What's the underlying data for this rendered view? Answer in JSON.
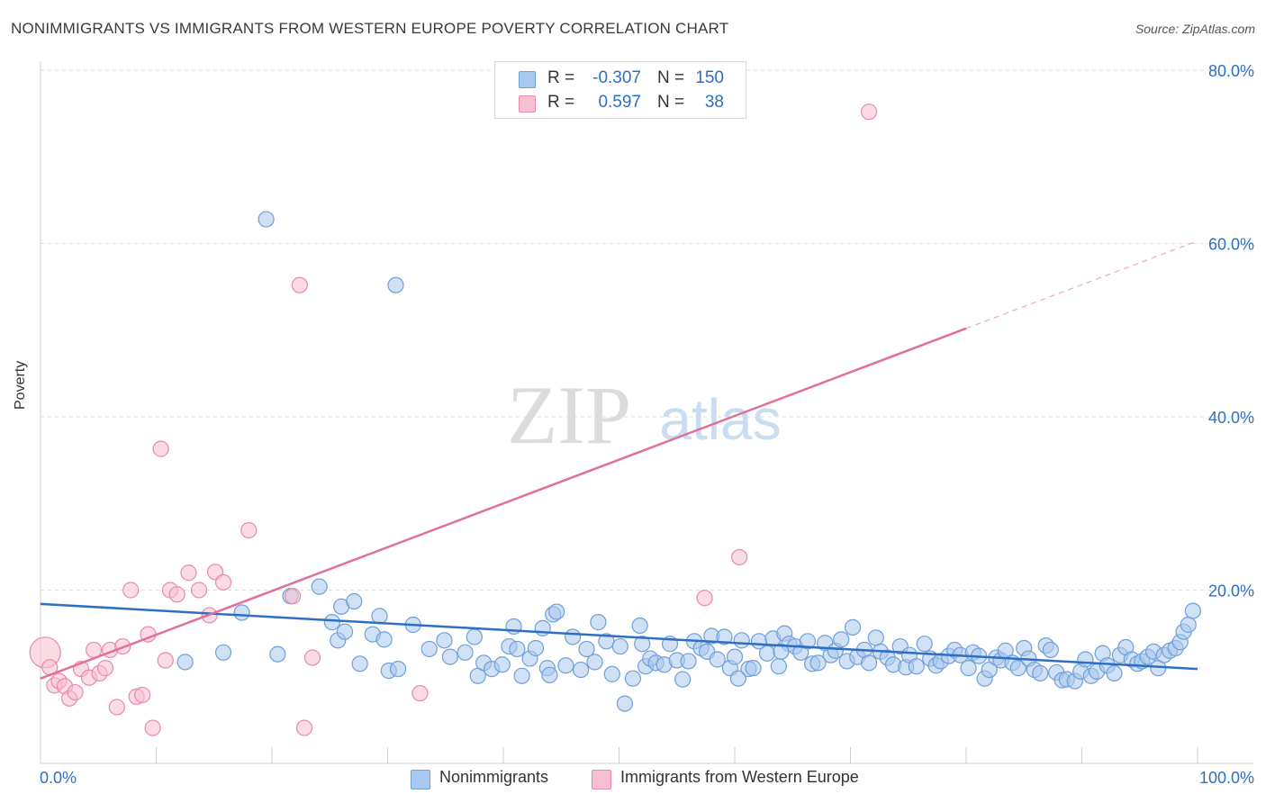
{
  "title": "NONIMMIGRANTS VS IMMIGRANTS FROM WESTERN EUROPE POVERTY CORRELATION CHART",
  "source": "Source: ZipAtlas.com",
  "watermark": {
    "zip": "ZIP",
    "atlas": "atlas"
  },
  "colors": {
    "blue_fill": "#a9c8ee",
    "blue_stroke": "#6f9fd8",
    "blue_line": "#2e6fc4",
    "pink_fill": "#f7bfd0",
    "pink_stroke": "#e88aa8",
    "pink_line": "#e0709a",
    "value_text": "#2e6fc4"
  },
  "stats": [
    {
      "r_label": "R =",
      "r_value": "-0.307",
      "n_label": "N =",
      "n_value": "150",
      "swatch": "#a9c8ee"
    },
    {
      "r_label": "R =",
      "r_value": "0.597",
      "n_label": "N =",
      "n_value": "38",
      "swatch": "#f7bfd0"
    }
  ],
  "legend": [
    {
      "label": "Nonimmigrants",
      "swatch": "#a9c8ee"
    },
    {
      "label": "Immigrants from Western Europe",
      "swatch": "#f7bfd0"
    }
  ],
  "chart_data": {
    "type": "scatter",
    "title": "NONIMMIGRANTS VS IMMIGRANTS FROM WESTERN EUROPE POVERTY CORRELATION CHART",
    "xlabel": "",
    "ylabel": "Poverty",
    "xlim": [
      0,
      100
    ],
    "ylim": [
      0,
      80
    ],
    "x_tick_labels": [
      "0.0%",
      "100.0%"
    ],
    "y_ticks": [
      20,
      40,
      60,
      80
    ],
    "y_tick_labels": [
      "20.0%",
      "40.0%",
      "60.0%",
      "80.0%"
    ],
    "grid": true,
    "series": [
      {
        "name": "Nonimmigrants",
        "r": -0.307,
        "n": 150,
        "trend": {
          "x0": 0,
          "y0": 18.4,
          "x1": 100,
          "y1": 10.9
        },
        "points": [
          [
            12.5,
            11.7
          ],
          [
            19.5,
            62.8
          ],
          [
            21.6,
            19.3
          ],
          [
            24.1,
            20.4
          ],
          [
            25.2,
            16.3
          ],
          [
            25.7,
            14.2
          ],
          [
            26.0,
            18.1
          ],
          [
            26.3,
            15.2
          ],
          [
            27.1,
            18.7
          ],
          [
            27.6,
            11.5
          ],
          [
            28.7,
            14.9
          ],
          [
            29.3,
            17.0
          ],
          [
            29.7,
            14.3
          ],
          [
            30.1,
            10.7
          ],
          [
            30.9,
            10.9
          ],
          [
            32.2,
            16.0
          ],
          [
            34.9,
            14.2
          ],
          [
            36.7,
            12.8
          ],
          [
            37.5,
            14.6
          ],
          [
            37.8,
            10.1
          ],
          [
            38.3,
            11.6
          ],
          [
            39.0,
            10.9
          ],
          [
            39.9,
            11.4
          ],
          [
            40.5,
            13.5
          ],
          [
            40.9,
            15.8
          ],
          [
            41.2,
            13.2
          ],
          [
            41.6,
            10.1
          ],
          [
            42.3,
            12.1
          ],
          [
            42.8,
            13.3
          ],
          [
            43.4,
            15.6
          ],
          [
            43.8,
            11.0
          ],
          [
            44.3,
            17.2
          ],
          [
            44.6,
            17.5
          ],
          [
            45.4,
            11.3
          ],
          [
            46.0,
            14.6
          ],
          [
            46.7,
            10.8
          ],
          [
            47.2,
            13.2
          ],
          [
            47.9,
            11.7
          ],
          [
            48.2,
            16.3
          ],
          [
            48.9,
            14.1
          ],
          [
            49.4,
            10.3
          ],
          [
            50.1,
            13.5
          ],
          [
            50.5,
            6.9
          ],
          [
            51.2,
            9.8
          ],
          [
            51.8,
            15.9
          ],
          [
            52.3,
            11.2
          ],
          [
            52.7,
            12.1
          ],
          [
            53.2,
            11.6
          ],
          [
            53.9,
            11.4
          ],
          [
            54.4,
            13.8
          ],
          [
            55.0,
            11.9
          ],
          [
            55.5,
            9.7
          ],
          [
            56.0,
            11.8
          ],
          [
            56.5,
            14.1
          ],
          [
            57.1,
            13.3
          ],
          [
            57.6,
            12.9
          ],
          [
            58.0,
            14.7
          ],
          [
            58.5,
            12.0
          ],
          [
            59.1,
            14.6
          ],
          [
            59.6,
            11.0
          ],
          [
            60.0,
            12.3
          ],
          [
            60.6,
            14.2
          ],
          [
            61.2,
            10.9
          ],
          [
            61.6,
            11.0
          ],
          [
            62.1,
            14.1
          ],
          [
            62.8,
            12.7
          ],
          [
            63.3,
            14.4
          ],
          [
            63.8,
            11.2
          ],
          [
            64.3,
            15.0
          ],
          [
            64.7,
            13.8
          ],
          [
            65.2,
            13.5
          ],
          [
            65.7,
            12.8
          ],
          [
            66.3,
            14.1
          ],
          [
            66.7,
            11.5
          ],
          [
            67.2,
            11.6
          ],
          [
            67.8,
            13.9
          ],
          [
            68.3,
            12.5
          ],
          [
            68.7,
            13.0
          ],
          [
            69.2,
            14.3
          ],
          [
            69.7,
            11.8
          ],
          [
            70.2,
            15.7
          ],
          [
            70.6,
            12.3
          ],
          [
            71.2,
            13.1
          ],
          [
            71.6,
            11.6
          ],
          [
            72.2,
            14.5
          ],
          [
            72.6,
            12.9
          ],
          [
            73.2,
            12.2
          ],
          [
            73.7,
            11.4
          ],
          [
            74.3,
            13.5
          ],
          [
            74.8,
            11.1
          ],
          [
            75.1,
            12.5
          ],
          [
            75.7,
            11.2
          ],
          [
            76.4,
            13.8
          ],
          [
            76.9,
            12.1
          ],
          [
            77.4,
            11.3
          ],
          [
            77.8,
            11.8
          ],
          [
            78.5,
            12.4
          ],
          [
            79.0,
            13.1
          ],
          [
            79.5,
            12.5
          ],
          [
            80.2,
            11.0
          ],
          [
            80.6,
            12.8
          ],
          [
            81.1,
            12.4
          ],
          [
            81.6,
            9.8
          ],
          [
            82.0,
            10.8
          ],
          [
            82.6,
            12.2
          ],
          [
            83.0,
            11.9
          ],
          [
            83.4,
            13.0
          ],
          [
            84.0,
            11.6
          ],
          [
            84.5,
            11.0
          ],
          [
            85.0,
            13.3
          ],
          [
            85.4,
            12.1
          ],
          [
            85.9,
            10.8
          ],
          [
            86.4,
            10.4
          ],
          [
            86.9,
            13.6
          ],
          [
            87.3,
            13.1
          ],
          [
            87.8,
            10.5
          ],
          [
            88.3,
            9.6
          ],
          [
            88.7,
            9.7
          ],
          [
            89.4,
            9.5
          ],
          [
            89.9,
            10.6
          ],
          [
            90.3,
            12.0
          ],
          [
            90.8,
            10.1
          ],
          [
            91.3,
            10.6
          ],
          [
            91.8,
            12.7
          ],
          [
            92.2,
            11.3
          ],
          [
            92.8,
            10.4
          ],
          [
            93.3,
            12.5
          ],
          [
            93.8,
            13.4
          ],
          [
            94.3,
            12.0
          ],
          [
            94.8,
            11.5
          ],
          [
            95.2,
            11.8
          ],
          [
            95.7,
            12.3
          ],
          [
            96.2,
            12.9
          ],
          [
            96.6,
            11.0
          ],
          [
            97.1,
            12.5
          ],
          [
            97.6,
            13.0
          ],
          [
            98.1,
            13.3
          ],
          [
            98.5,
            14.0
          ],
          [
            98.8,
            15.2
          ],
          [
            99.2,
            16.0
          ],
          [
            99.6,
            17.6
          ],
          [
            30.7,
            55.2
          ],
          [
            17.4,
            17.4
          ],
          [
            20.5,
            12.6
          ],
          [
            15.8,
            12.8
          ],
          [
            33.6,
            13.2
          ],
          [
            35.4,
            12.3
          ],
          [
            52.0,
            13.8
          ],
          [
            60.3,
            9.8
          ],
          [
            64.0,
            12.9
          ],
          [
            44.0,
            10.2
          ]
        ]
      },
      {
        "name": "Immigrants from Western Europe",
        "r": 0.597,
        "n": 38,
        "trend": {
          "x0": 0,
          "y0": 9.8,
          "x1": 80,
          "y1": 50.2,
          "dash_to_x": 100,
          "dash_to_y": 60.3
        },
        "points": [
          [
            0.4,
            12.8
          ],
          [
            0.8,
            11.1
          ],
          [
            1.2,
            9.0
          ],
          [
            1.6,
            9.5
          ],
          [
            2.1,
            8.9
          ],
          [
            2.5,
            7.5
          ],
          [
            3.0,
            8.2
          ],
          [
            3.5,
            10.9
          ],
          [
            4.2,
            9.9
          ],
          [
            4.6,
            13.1
          ],
          [
            5.1,
            10.4
          ],
          [
            5.6,
            11.0
          ],
          [
            6.0,
            13.1
          ],
          [
            6.6,
            6.5
          ],
          [
            7.1,
            13.5
          ],
          [
            7.8,
            20.0
          ],
          [
            8.3,
            7.7
          ],
          [
            8.8,
            7.9
          ],
          [
            9.3,
            14.9
          ],
          [
            9.7,
            4.1
          ],
          [
            10.4,
            36.3
          ],
          [
            10.8,
            11.9
          ],
          [
            11.2,
            20.0
          ],
          [
            11.8,
            19.5
          ],
          [
            12.8,
            22.0
          ],
          [
            13.7,
            20.0
          ],
          [
            14.6,
            17.1
          ],
          [
            15.1,
            22.1
          ],
          [
            15.8,
            20.9
          ],
          [
            18.0,
            26.9
          ],
          [
            21.8,
            19.3
          ],
          [
            22.4,
            55.2
          ],
          [
            22.8,
            4.1
          ],
          [
            23.5,
            12.2
          ],
          [
            32.8,
            8.1
          ],
          [
            57.4,
            19.1
          ],
          [
            60.4,
            23.8
          ],
          [
            71.6,
            75.2
          ]
        ]
      }
    ]
  }
}
